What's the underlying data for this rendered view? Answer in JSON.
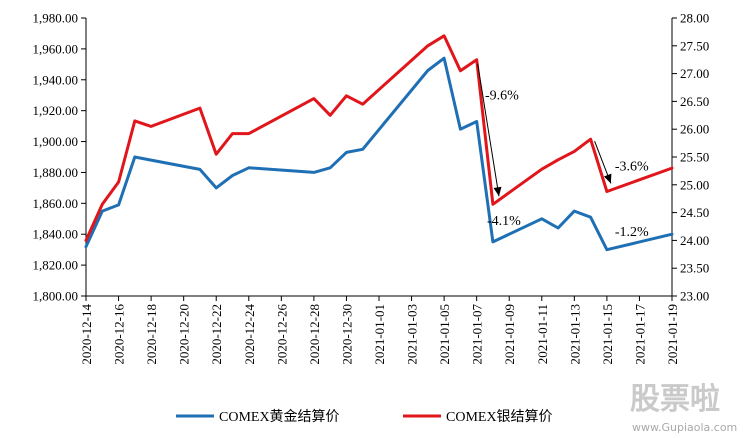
{
  "chart_data": {
    "type": "line",
    "x": [
      "2020-12-14",
      "2020-12-15",
      "2020-12-16",
      "2020-12-17",
      "2020-12-18",
      "2020-12-21",
      "2020-12-22",
      "2020-12-23",
      "2020-12-24",
      "2020-12-28",
      "2020-12-29",
      "2020-12-30",
      "2020-12-31",
      "2021-01-04",
      "2021-01-05",
      "2021-01-06",
      "2021-01-07",
      "2021-01-08",
      "2021-01-11",
      "2021-01-12",
      "2021-01-13",
      "2021-01-14",
      "2021-01-15",
      "2021-01-19"
    ],
    "x_tick_labels": [
      "2020-12-14",
      "2020-12-16",
      "2020-12-18",
      "2020-12-20",
      "2020-12-22",
      "2020-12-24",
      "2020-12-26",
      "2020-12-28",
      "2020-12-30",
      "2021-01-01",
      "2021-01-03",
      "2021-01-05",
      "2021-01-07",
      "2021-01-09",
      "2021-01-11",
      "2021-01-13",
      "2021-01-15",
      "2021-01-17",
      "2021-01-19"
    ],
    "series": [
      {
        "name": "COMEX黄金结算价",
        "axis": "left",
        "color": "#1f6fb4",
        "values": [
          1832,
          1855,
          1859,
          1890,
          1888,
          1882,
          1870,
          1878,
          1883,
          1880,
          1883,
          1893,
          1895,
          1946,
          1954,
          1908,
          1913,
          1835,
          1850,
          1844,
          1855,
          1851,
          1830,
          1840
        ]
      },
      {
        "name": "COMEX银结算价",
        "axis": "right",
        "color": "#e0161b",
        "values": [
          24.0,
          24.65,
          25.05,
          26.15,
          26.05,
          26.38,
          25.55,
          25.92,
          25.92,
          26.55,
          26.25,
          26.6,
          26.45,
          27.5,
          27.68,
          27.05,
          27.25,
          24.65,
          25.28,
          25.45,
          25.6,
          25.82,
          24.88,
          25.3
        ]
      }
    ],
    "left_axis": {
      "min": 1800,
      "max": 1980,
      "step": 20,
      "tick_labels": [
        "1,800.00",
        "1,820.00",
        "1,840.00",
        "1,860.00",
        "1,880.00",
        "1,900.00",
        "1,920.00",
        "1,940.00",
        "1,960.00",
        "1,980.00"
      ]
    },
    "right_axis": {
      "min": 23.0,
      "max": 28.0,
      "step": 0.5,
      "tick_labels": [
        "23.00",
        "23.50",
        "24.00",
        "24.50",
        "25.00",
        "25.50",
        "26.00",
        "26.50",
        "27.00",
        "27.50",
        "28.00"
      ]
    },
    "annotations": [
      {
        "text": "-9.6%",
        "anchor_x": "2021-01-08",
        "anchor_series": 1
      },
      {
        "text": "-4.1%",
        "anchor_x": "2021-01-08",
        "anchor_series": 0
      },
      {
        "text": "-3.6%",
        "anchor_x": "2021-01-15",
        "anchor_series": 1
      },
      {
        "text": "-1.2%",
        "anchor_x": "2021-01-15",
        "anchor_series": 0
      }
    ],
    "legend_position": "bottom",
    "grid": false
  },
  "watermark": {
    "text": "股票啦",
    "url": "www.Gupiaola.com"
  }
}
